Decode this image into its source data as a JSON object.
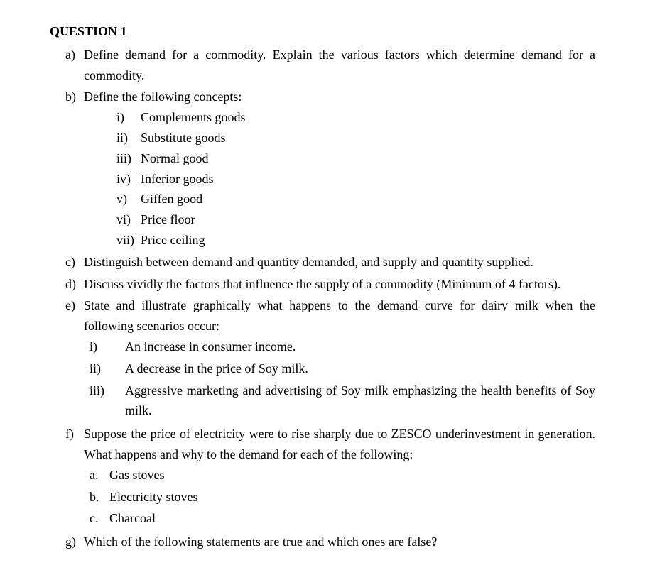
{
  "title": "QUESTION 1",
  "items": {
    "a": {
      "marker": "a)",
      "text": "Define demand for a commodity. Explain the various factors which determine demand for a commodity."
    },
    "b": {
      "marker": "b)",
      "text": "Define the following concepts:",
      "sub": {
        "i": {
          "marker": "i)",
          "text": "Complements goods"
        },
        "ii": {
          "marker": "ii)",
          "text": "Substitute goods"
        },
        "iii": {
          "marker": "iii)",
          "text": "Normal good"
        },
        "iv": {
          "marker": "iv)",
          "text": "Inferior goods"
        },
        "v": {
          "marker": "v)",
          "text": "Giffen good"
        },
        "vi": {
          "marker": "vi)",
          "text": "Price floor"
        },
        "vii": {
          "marker": "vii)",
          "text": "Price ceiling"
        }
      }
    },
    "c": {
      "marker": "c)",
      "text": "Distinguish between demand and quantity demanded, and supply and quantity supplied."
    },
    "d": {
      "marker": "d)",
      "text": "Discuss vividly the factors that influence the supply of a commodity (Minimum of 4 factors)."
    },
    "e": {
      "marker": "e)",
      "text": "State and illustrate graphically what happens to the demand curve for dairy milk when the following scenarios occur:",
      "sub": {
        "i": {
          "marker": "i)",
          "text": "An increase in consumer income."
        },
        "ii": {
          "marker": "ii)",
          "text": "A decrease in the price of Soy milk."
        },
        "iii": {
          "marker": "iii)",
          "text": "Aggressive marketing and advertising of Soy milk emphasizing the health benefits of Soy milk."
        }
      }
    },
    "f": {
      "marker": "f)",
      "text": "Suppose the price of electricity were to rise sharply due to ZESCO underinvestment in generation. What happens and why to the demand for each of the following:",
      "sub": {
        "a": {
          "marker": "a.",
          "text": "Gas stoves"
        },
        "b": {
          "marker": "b.",
          "text": "Electricity stoves"
        },
        "c": {
          "marker": "c.",
          "text": "Charcoal"
        }
      }
    },
    "g": {
      "marker": "g)",
      "text": "Which of the following statements are true and which ones are false?"
    }
  }
}
